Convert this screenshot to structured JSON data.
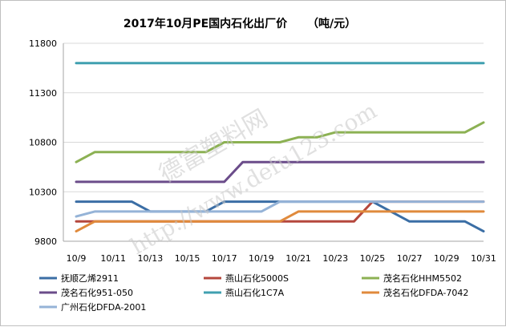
{
  "chart_data": {
    "type": "line",
    "title": "2017年10月PE国内石化出厂价",
    "title_unit": "（吨/元）",
    "xlabel": "",
    "ylabel": "",
    "x": [
      "10/9",
      "10/10",
      "10/11",
      "10/12",
      "10/13",
      "10/14",
      "10/15",
      "10/16",
      "10/17",
      "10/18",
      "10/19",
      "10/20",
      "10/21",
      "10/22",
      "10/23",
      "10/24",
      "10/25",
      "10/26",
      "10/27",
      "10/28",
      "10/29",
      "10/30",
      "10/31"
    ],
    "x_tick_labels": [
      "10/9",
      "10/11",
      "10/13",
      "10/15",
      "10/17",
      "10/19",
      "10/21",
      "10/23",
      "10/25",
      "10/27",
      "10/29",
      "10/31"
    ],
    "ylim": [
      9800,
      11800
    ],
    "y_ticks": [
      9800,
      10300,
      10800,
      11300,
      11800
    ],
    "grid": "horizontal",
    "legend_position": "bottom",
    "series": [
      {
        "name": "抚顺乙烯2911",
        "color": "#3b6ea5",
        "values": [
          10200,
          10200,
          10200,
          10200,
          10100,
          10100,
          10100,
          10100,
          10200,
          10200,
          10200,
          10200,
          10200,
          10200,
          10200,
          10200,
          10200,
          10100,
          10000,
          10000,
          10000,
          10000,
          9900
        ]
      },
      {
        "name": "燕山石化5000S",
        "color": "#b5473d",
        "values": [
          10000,
          10000,
          10000,
          10000,
          10000,
          10000,
          10000,
          10000,
          10000,
          10000,
          10000,
          10000,
          10000,
          10000,
          10000,
          10000,
          10200,
          10200,
          10200,
          10200,
          10200,
          10200,
          10200
        ]
      },
      {
        "name": "茂名石化HHM5502",
        "color": "#8cb153",
        "values": [
          10600,
          10700,
          10700,
          10700,
          10700,
          10700,
          10700,
          10700,
          10800,
          10800,
          10800,
          10800,
          10850,
          10850,
          10900,
          10900,
          10900,
          10900,
          10900,
          10900,
          10900,
          10900,
          11000
        ]
      },
      {
        "name": "茂名石化951-050",
        "color": "#6b4c8a",
        "values": [
          10400,
          10400,
          10400,
          10400,
          10400,
          10400,
          10400,
          10400,
          10400,
          10600,
          10600,
          10600,
          10600,
          10600,
          10600,
          10600,
          10600,
          10600,
          10600,
          10600,
          10600,
          10600,
          10600
        ]
      },
      {
        "name": "燕山石化1C7A",
        "color": "#40a0b0",
        "values": [
          11600,
          11600,
          11600,
          11600,
          11600,
          11600,
          11600,
          11600,
          11600,
          11600,
          11600,
          11600,
          11600,
          11600,
          11600,
          11600,
          11600,
          11600,
          11600,
          11600,
          11600,
          11600,
          11600
        ]
      },
      {
        "name": "茂名石化DFDA-7042",
        "color": "#e08a3c",
        "values": [
          9900,
          10000,
          10000,
          10000,
          10000,
          10000,
          10000,
          10000,
          10000,
          10000,
          10000,
          10000,
          10100,
          10100,
          10100,
          10100,
          10100,
          10100,
          10100,
          10100,
          10100,
          10100,
          10100
        ]
      },
      {
        "name": "广州石化DFDA-2001",
        "color": "#95b3d7",
        "values": [
          10050,
          10100,
          10100,
          10100,
          10100,
          10100,
          10100,
          10100,
          10100,
          10100,
          10100,
          10200,
          10200,
          10200,
          10200,
          10200,
          10200,
          10200,
          10200,
          10200,
          10200,
          10200,
          10200
        ]
      }
    ]
  },
  "watermark": {
    "brand": "德富塑料网",
    "url": "http://www.defu123.com"
  }
}
